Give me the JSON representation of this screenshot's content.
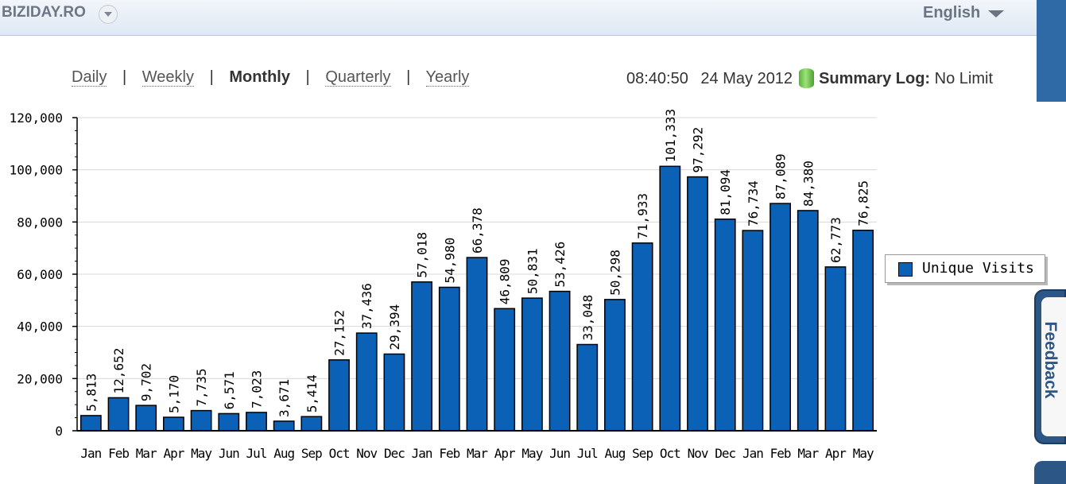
{
  "header": {
    "brand": "BIZIDAY.RO",
    "language": "English",
    "feedback_label": "Feedback"
  },
  "nav": {
    "daily": "Daily",
    "weekly": "Weekly",
    "monthly": "Monthly",
    "quarterly": "Quarterly",
    "yearly": "Yearly",
    "separator": "|"
  },
  "status": {
    "time": "08:40:50",
    "date": "24 May 2012",
    "summary_label": "Summary Log:",
    "summary_value": "No Limit"
  },
  "colors": {
    "bar": "#0b61b6",
    "accent": "#2c5686"
  },
  "chart_data": {
    "type": "bar",
    "categories": [
      "Jan",
      "Feb",
      "Mar",
      "Apr",
      "May",
      "Jun",
      "Jul",
      "Aug",
      "Sep",
      "Oct",
      "Nov",
      "Dec",
      "Jan",
      "Feb",
      "Mar",
      "Apr",
      "May",
      "Jun",
      "Jul",
      "Aug",
      "Sep",
      "Oct",
      "Nov",
      "Dec",
      "Jan",
      "Feb",
      "Mar",
      "Apr",
      "May"
    ],
    "series": [
      {
        "name": "Unique Visits",
        "values": [
          5813,
          12652,
          9702,
          5170,
          7735,
          6571,
          7023,
          3671,
          5414,
          27152,
          37436,
          29394,
          57018,
          54980,
          66378,
          46809,
          50831,
          53426,
          33048,
          50298,
          71933,
          101333,
          97292,
          81094,
          76734,
          87089,
          84380,
          62773,
          76825
        ],
        "labels": [
          "5,813",
          "12,652",
          "9,702",
          "5,170",
          "7,735",
          "6,571",
          "7,023",
          "3,671",
          "5,414",
          "27,152",
          "37,436",
          "29,394",
          "57,018",
          "54,980",
          "66,378",
          "46,809",
          "50,831",
          "53,426",
          "33,048",
          "50,298",
          "71,933",
          "101,333",
          "97,292",
          "81,094",
          "76,734",
          "87,089",
          "84,380",
          "62,773",
          "76,825"
        ]
      }
    ],
    "ylim": [
      0,
      120000
    ],
    "yticks": [
      "0",
      "20,000",
      "40,000",
      "60,000",
      "80,000",
      "100,000",
      "120,000"
    ],
    "grid": true,
    "legend_position": "right"
  }
}
